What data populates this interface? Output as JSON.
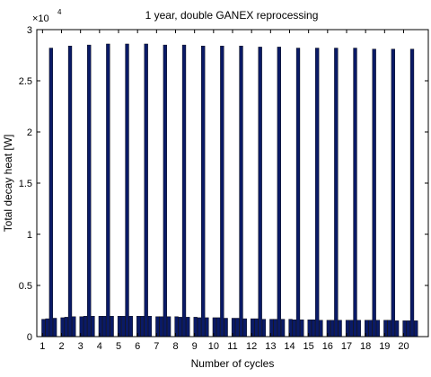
{
  "chart_data": {
    "type": "bar",
    "title": "1 year, double GANEX reprocessing",
    "xlabel": "Number of cycles",
    "ylabel": "Total decay heat [W]",
    "y_exponent_label": "×10",
    "y_exponent_power": "4",
    "ylim": [
      0,
      30000
    ],
    "yticks": [
      0,
      5000,
      10000,
      15000,
      20000,
      25000,
      30000
    ],
    "ytick_labels": [
      "0",
      "0.5",
      "1",
      "1.5",
      "2",
      "2.5",
      "3"
    ],
    "xlim": [
      0.7,
      21.3
    ],
    "xticks": [
      1,
      2,
      3,
      4,
      5,
      6,
      7,
      8,
      9,
      10,
      11,
      12,
      13,
      14,
      15,
      16,
      17,
      18,
      19,
      20
    ],
    "xtick_labels": [
      "1",
      "2",
      "3",
      "4",
      "5",
      "6",
      "7",
      "8",
      "9",
      "10",
      "11",
      "12",
      "13",
      "14",
      "15",
      "16",
      "17",
      "18",
      "19",
      "20"
    ],
    "grid": false,
    "bar_color": "#0a1a66",
    "series": [
      {
        "x": [
          1.05,
          1.25,
          1.45,
          1.65,
          2.05,
          2.25,
          2.45,
          2.65,
          3.05,
          3.25,
          3.45,
          3.65,
          4.05,
          4.25,
          4.45,
          4.65,
          5.05,
          5.25,
          5.45,
          5.65,
          6.05,
          6.25,
          6.45,
          6.65,
          7.05,
          7.25,
          7.45,
          7.65,
          8.05,
          8.25,
          8.45,
          8.65,
          9.05,
          9.25,
          9.45,
          9.65,
          10.05,
          10.25,
          10.45,
          10.65,
          11.05,
          11.25,
          11.45,
          11.65,
          12.05,
          12.25,
          12.45,
          12.65,
          13.05,
          13.25,
          13.45,
          13.65,
          14.05,
          14.25,
          14.45,
          14.65,
          15.05,
          15.25,
          15.45,
          15.65,
          16.05,
          16.25,
          16.45,
          16.65,
          17.05,
          17.25,
          17.45,
          17.65,
          18.05,
          18.25,
          18.45,
          18.65,
          19.05,
          19.25,
          19.45,
          19.65,
          20.05,
          20.25,
          20.45,
          20.65
        ],
        "values": [
          1700,
          1750,
          28200,
          1800,
          1850,
          1900,
          28400,
          1950,
          1950,
          2000,
          28500,
          2000,
          2000,
          2000,
          28600,
          2000,
          2000,
          2000,
          28600,
          2000,
          2000,
          2000,
          28600,
          2000,
          1950,
          1950,
          28500,
          1950,
          1950,
          1900,
          28500,
          1900,
          1900,
          1850,
          28400,
          1850,
          1850,
          1850,
          28400,
          1800,
          1800,
          1800,
          28400,
          1750,
          1750,
          1750,
          28300,
          1700,
          1700,
          1700,
          28300,
          1700,
          1700,
          1650,
          28200,
          1650,
          1650,
          1650,
          28200,
          1600,
          1600,
          1600,
          28200,
          1600,
          1600,
          1600,
          28200,
          1600,
          1600,
          1600,
          28100,
          1600,
          1600,
          1600,
          28100,
          1550,
          1550,
          1550,
          28100,
          1550
        ]
      }
    ]
  }
}
